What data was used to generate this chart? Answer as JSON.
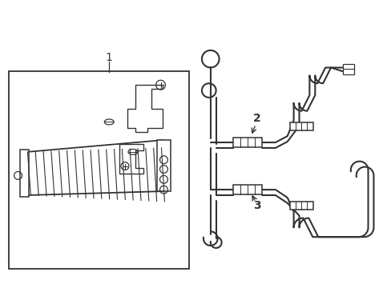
{
  "bg_color": "#ffffff",
  "line_color": "#333333",
  "fig_width": 4.89,
  "fig_height": 3.6,
  "dpi": 100,
  "label_1": "1",
  "label_2": "2",
  "label_3": "3"
}
